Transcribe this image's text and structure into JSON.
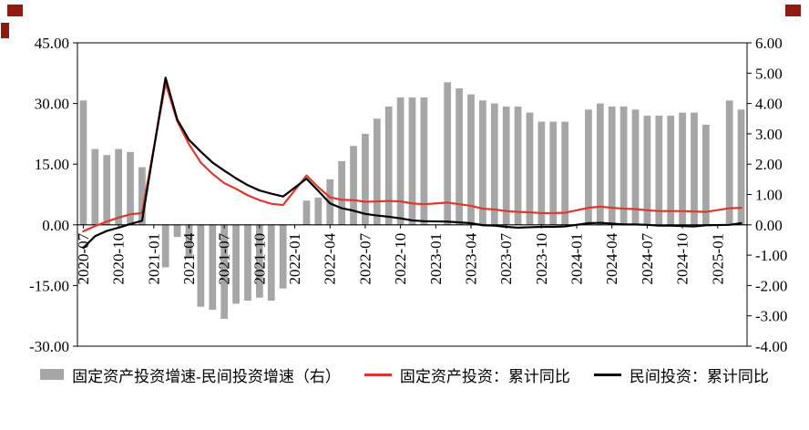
{
  "page": {
    "background": "#ffffff"
  },
  "decor": {
    "corner_color": "#8e1a10"
  },
  "chart_data": {
    "type": "combo-bar-line",
    "title": "",
    "grid": false,
    "legend_position": "bottom",
    "months": [
      "2020-07",
      "2020-08",
      "2020-09",
      "2020-10",
      "2020-11",
      "2020-12",
      "2021-01",
      "2021-02",
      "2021-03",
      "2021-04",
      "2021-05",
      "2021-06",
      "2021-07",
      "2021-08",
      "2021-09",
      "2021-10",
      "2021-11",
      "2021-12",
      "2022-01",
      "2022-02",
      "2022-03",
      "2022-04",
      "2022-05",
      "2022-06",
      "2022-07",
      "2022-08",
      "2022-09",
      "2022-10",
      "2022-11",
      "2022-12",
      "2023-01",
      "2023-02",
      "2023-03",
      "2023-04",
      "2023-05",
      "2023-06",
      "2023-07",
      "2023-08",
      "2023-09",
      "2023-10",
      "2023-11",
      "2023-12",
      "2024-01",
      "2024-02",
      "2024-03",
      "2024-04",
      "2024-05",
      "2024-06",
      "2024-07",
      "2024-08",
      "2024-09",
      "2024-10",
      "2024-11",
      "2024-12",
      "2025-01",
      "2025-02",
      "2025-03"
    ],
    "series": [
      {
        "name": "固定资产投资增速-民间投资增速（右）",
        "type": "bar",
        "axis": "right",
        "color": "#a6a6a6",
        "values": [
          4.1,
          2.5,
          2.3,
          2.5,
          2.4,
          1.9,
          null,
          -1.4,
          -0.4,
          -1.1,
          -2.7,
          -2.8,
          -3.1,
          -2.6,
          -2.5,
          -2.4,
          -2.5,
          -2.1,
          null,
          0.8,
          0.9,
          1.5,
          2.1,
          2.6,
          3.0,
          3.5,
          3.9,
          4.2,
          4.2,
          4.2,
          null,
          4.7,
          4.5,
          4.3,
          4.1,
          4.0,
          3.9,
          3.9,
          3.7,
          3.4,
          3.4,
          3.4,
          null,
          3.8,
          4.0,
          3.9,
          3.9,
          3.8,
          3.6,
          3.6,
          3.6,
          3.7,
          3.7,
          3.3,
          null,
          4.1,
          3.8
        ]
      },
      {
        "name": "固定资产投资：累计同比",
        "type": "line",
        "axis": "left",
        "color": "#df362d",
        "values": [
          -1.6,
          -0.3,
          0.8,
          1.8,
          2.6,
          2.9,
          null,
          35.0,
          25.6,
          19.9,
          15.4,
          12.6,
          10.3,
          8.9,
          7.3,
          6.1,
          5.2,
          4.9,
          null,
          12.2,
          9.3,
          6.8,
          6.2,
          6.1,
          5.7,
          5.8,
          5.9,
          5.8,
          5.3,
          5.1,
          null,
          5.5,
          5.1,
          4.7,
          4.0,
          3.8,
          3.4,
          3.2,
          3.1,
          2.9,
          2.9,
          3.0,
          null,
          4.2,
          4.5,
          4.2,
          4.0,
          3.9,
          3.6,
          3.4,
          3.4,
          3.4,
          3.3,
          3.2,
          null,
          4.1,
          4.2
        ]
      },
      {
        "name": "民间投资：累计同比",
        "type": "line",
        "axis": "left",
        "color": "#000000",
        "values": [
          -5.7,
          -2.8,
          -1.5,
          -0.7,
          0.2,
          1.0,
          null,
          36.4,
          26.0,
          21.0,
          18.1,
          15.4,
          13.4,
          11.5,
          9.8,
          8.5,
          7.7,
          7.0,
          null,
          11.4,
          8.4,
          5.3,
          4.1,
          3.5,
          2.7,
          2.3,
          2.0,
          1.6,
          1.1,
          0.9,
          null,
          0.8,
          0.6,
          0.4,
          -0.1,
          -0.2,
          -0.5,
          -0.7,
          -0.6,
          -0.5,
          -0.5,
          -0.4,
          null,
          0.4,
          0.5,
          0.3,
          0.1,
          0.1,
          0.0,
          -0.2,
          -0.2,
          -0.3,
          -0.4,
          -0.1,
          null,
          0.0,
          0.4
        ]
      }
    ],
    "left_axis": {
      "min": -30,
      "max": 45,
      "tick_values": [
        45,
        30,
        15,
        0,
        -15,
        -30
      ],
      "tick_labels": [
        "45.00",
        "30.00",
        "15.00",
        "0.00",
        "-15.00",
        "-30.00"
      ]
    },
    "right_axis": {
      "min": -4,
      "max": 6,
      "tick_values": [
        6,
        5,
        4,
        3,
        2,
        1,
        0,
        -1,
        -2,
        -3,
        -4
      ],
      "tick_labels": [
        "6.00",
        "5.00",
        "4.00",
        "3.00",
        "2.00",
        "1.00",
        "0.00",
        "-1.00",
        "-2.00",
        "-3.00",
        "-4.00"
      ]
    },
    "x_tick_labels": [
      "2020-07",
      "2020-10",
      "2021-01",
      "2021-04",
      "2021-07",
      "2021-10",
      "2022-01",
      "2022-04",
      "2022-07",
      "2022-10",
      "2023-01",
      "2023-04",
      "2023-07",
      "2023-10",
      "2024-01",
      "2024-04",
      "2024-07",
      "2024-10",
      "2025-01"
    ]
  }
}
